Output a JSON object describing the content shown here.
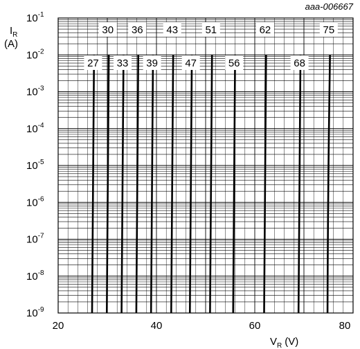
{
  "chart_data": {
    "type": "line",
    "caption": "aaa-006667",
    "ylabel": {
      "main": "I",
      "sub": "R",
      "unit": "(A)"
    },
    "xlabel": {
      "main": "V",
      "sub": "R",
      "unit": "(V)"
    },
    "xlim": [
      20,
      80
    ],
    "ylim_exp": [
      -9,
      -1
    ],
    "ylog": true,
    "xticks": [
      "20",
      "40",
      "60",
      "80"
    ],
    "yticks": [
      {
        "base": "10",
        "exp": "-1"
      },
      {
        "base": "10",
        "exp": "-2"
      },
      {
        "base": "10",
        "exp": "-3"
      },
      {
        "base": "10",
        "exp": "-4"
      },
      {
        "base": "10",
        "exp": "-5"
      },
      {
        "base": "10",
        "exp": "-6"
      },
      {
        "base": "10",
        "exp": "-7"
      },
      {
        "base": "10",
        "exp": "-8"
      },
      {
        "base": "10",
        "exp": "-9"
      }
    ],
    "grid": true,
    "series": [
      {
        "name": "27",
        "v_at_1e-9": 26.9,
        "v_at_1e-2": 27.3,
        "label_row": "lower"
      },
      {
        "name": "30",
        "v_at_1e-9": 29.9,
        "v_at_1e-2": 30.3,
        "label_row": "upper"
      },
      {
        "name": "33",
        "v_at_1e-9": 32.9,
        "v_at_1e-2": 33.3,
        "label_row": "lower"
      },
      {
        "name": "36",
        "v_at_1e-9": 35.9,
        "v_at_1e-2": 36.3,
        "label_row": "upper"
      },
      {
        "name": "39",
        "v_at_1e-9": 38.9,
        "v_at_1e-2": 39.3,
        "label_row": "lower"
      },
      {
        "name": "43",
        "v_at_1e-9": 43.0,
        "v_at_1e-2": 43.4,
        "label_row": "upper"
      },
      {
        "name": "47",
        "v_at_1e-9": 46.8,
        "v_at_1e-2": 47.2,
        "label_row": "lower"
      },
      {
        "name": "51",
        "v_at_1e-9": 50.9,
        "v_at_1e-2": 51.3,
        "label_row": "upper"
      },
      {
        "name": "56",
        "v_at_1e-9": 55.6,
        "v_at_1e-2": 56.0,
        "label_row": "lower"
      },
      {
        "name": "62",
        "v_at_1e-9": 61.9,
        "v_at_1e-2": 62.3,
        "label_row": "upper"
      },
      {
        "name": "68",
        "v_at_1e-9": 68.9,
        "v_at_1e-2": 69.3,
        "label_row": "lower"
      },
      {
        "name": "75",
        "v_at_1e-9": 74.8,
        "v_at_1e-2": 75.3,
        "label_row": "upper"
      }
    ]
  }
}
